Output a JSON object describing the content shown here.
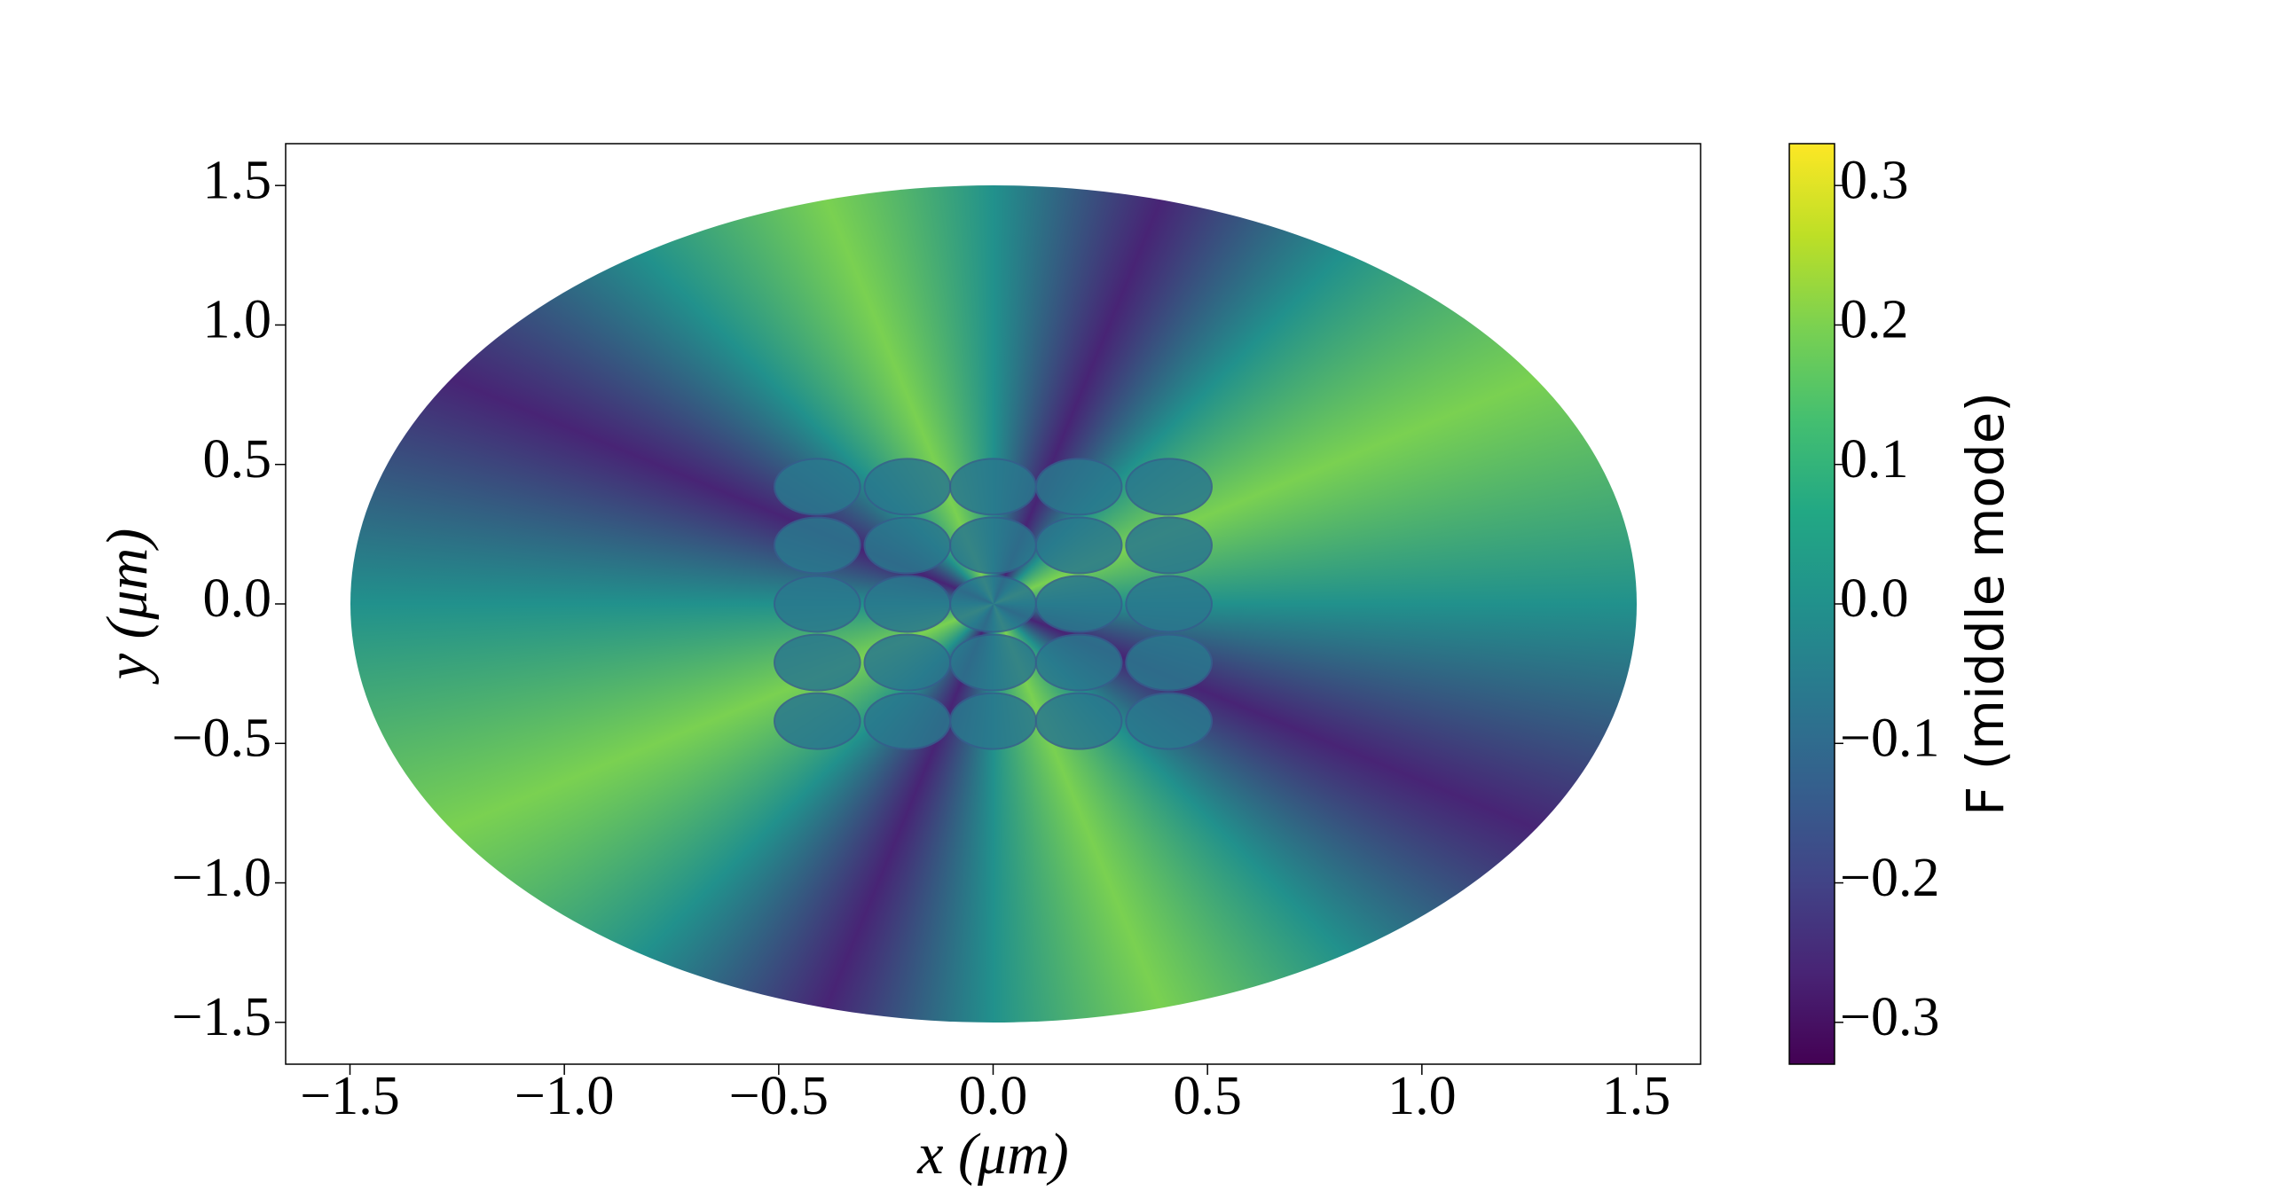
{
  "chart_data": {
    "type": "field",
    "xlabel": "x (μm)",
    "ylabel": "y (μm)",
    "xlim": [
      -1.65,
      1.65
    ],
    "ylim": [
      -1.65,
      1.65
    ],
    "xticks": [
      {
        "value": -1.5,
        "label": "−1.5"
      },
      {
        "value": -1,
        "label": "−1.0"
      },
      {
        "value": -0.5,
        "label": "−0.5"
      },
      {
        "value": 0,
        "label": "0.0"
      },
      0.5,
      {
        "value": 1,
        "label": "1.0"
      },
      1.5
    ],
    "yticks": [
      {
        "value": -1.5,
        "label": "−1.5"
      },
      {
        "value": -1,
        "label": "−1.0"
      },
      {
        "value": -0.5,
        "label": "−0.5"
      },
      {
        "value": 0,
        "label": "0.0"
      },
      0.5,
      {
        "value": 1,
        "label": "1.0"
      },
      1.5
    ],
    "colormap": "viridis",
    "clim": [
      -0.33,
      0.33
    ],
    "cticks": [
      {
        "value": -0.3,
        "label": "−0.3"
      },
      {
        "value": -0.2,
        "label": "−0.2"
      },
      {
        "value": -0.1,
        "label": "−0.1"
      },
      {
        "value": 0,
        "label": "0.0"
      },
      0.1,
      0.2,
      0.3
    ],
    "colorbar_label": "F (middle mode)"
  }
}
